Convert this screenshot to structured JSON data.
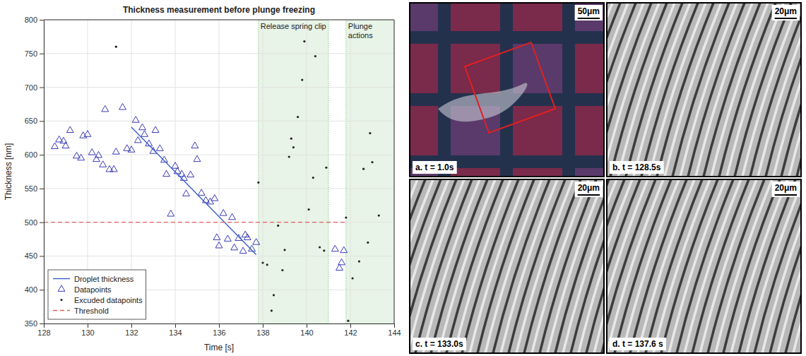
{
  "chart_data": {
    "type": "scatter",
    "title": "Thickness measurement before plunge freezing",
    "x_label": "Time [s]",
    "y_label": "Thickness [nm]",
    "xlim": [
      128,
      144
    ],
    "xticks": [
      128,
      130,
      132,
      134,
      136,
      138,
      140,
      142,
      144
    ],
    "ylim": [
      350,
      800
    ],
    "yticks": [
      350,
      400,
      450,
      500,
      550,
      600,
      650,
      700,
      750,
      800
    ],
    "grid": true,
    "legend": "lower left",
    "regions": [
      {
        "label": "Release spring clip",
        "x": [
          137.8,
          141.0
        ],
        "color": "#5cb85c"
      },
      {
        "label": "Plunge actions",
        "x": [
          141.8,
          144
        ],
        "color": "#5cb85c"
      }
    ],
    "series": [
      {
        "name": "Droplet thickness",
        "type": "line",
        "color": "#3a5fc8",
        "marker": "none",
        "line_style": "solid",
        "x": [
          132.0,
          137.7
        ],
        "values": [
          641,
          452
        ]
      },
      {
        "name": "Datapoints",
        "type": "scatter",
        "color": "#3a3ab8",
        "marker": "triangle",
        "line_style": "none",
        "x": [
          128.5,
          128.7,
          128.9,
          129.0,
          129.2,
          129.5,
          129.7,
          129.8,
          130.0,
          130.2,
          130.4,
          130.5,
          130.7,
          130.8,
          131.0,
          131.2,
          131.3,
          131.6,
          131.8,
          132.0,
          132.2,
          132.3,
          132.5,
          132.6,
          132.8,
          133.0,
          133.1,
          133.3,
          133.5,
          133.6,
          133.8,
          134.0,
          134.1,
          134.3,
          134.4,
          134.5,
          134.7,
          134.9,
          135.0,
          135.2,
          135.4,
          135.6,
          135.8,
          135.9,
          136.0,
          136.2,
          136.4,
          136.6,
          136.7,
          136.9,
          137.1,
          137.2,
          137.3,
          137.5,
          137.7,
          141.3,
          141.5,
          141.6,
          141.7
        ],
        "values": [
          612,
          622,
          620,
          613,
          636,
          598,
          595,
          628,
          630,
          603,
          593,
          599,
          585,
          667,
          578,
          578,
          604,
          670,
          609,
          607,
          651,
          621,
          640,
          630,
          616,
          605,
          636,
          609,
          592,
          571,
          512,
          583,
          575,
          571,
          565,
          542,
          570,
          613,
          593,
          543,
          532,
          530,
          535,
          477,
          465,
          513,
          475,
          507,
          462,
          476,
          457,
          481,
          477,
          460,
          470,
          460,
          432,
          440,
          458
        ]
      },
      {
        "name": "Excuded datapoints",
        "type": "scatter",
        "color": "#222222",
        "marker": "dot",
        "line_style": "none",
        "x": [
          131.3,
          137.8,
          138.0,
          138.2,
          138.4,
          138.5,
          138.7,
          138.9,
          139.0,
          139.2,
          139.3,
          139.4,
          139.6,
          139.8,
          139.9,
          140.1,
          140.3,
          140.4,
          140.6,
          140.8,
          140.9,
          141.8,
          141.9,
          142.1,
          142.4,
          142.6,
          142.8,
          142.9,
          143.0,
          143.3
        ],
        "values": [
          760,
          559,
          440,
          437,
          369,
          392,
          495,
          429,
          459,
          597,
          624,
          611,
          656,
          711,
          768,
          519,
          566,
          746,
          463,
          458,
          581,
          507,
          354,
          417,
          442,
          579,
          470,
          632,
          589,
          510
        ]
      },
      {
        "name": "Threshold",
        "type": "line",
        "color": "#e06060",
        "marker": "none",
        "line_style": "dashed",
        "x": [
          128,
          141.8
        ],
        "values": [
          500,
          500
        ]
      }
    ]
  },
  "panels": [
    {
      "label": "a. t = 1.0s",
      "scale_bar": "50μm"
    },
    {
      "label": "b. t = 128.5s",
      "scale_bar": "20μm"
    },
    {
      "label": "c. t = 133.0s",
      "scale_bar": "20μm"
    },
    {
      "label": "d. t = 137.6 s",
      "scale_bar": "20μm"
    }
  ]
}
